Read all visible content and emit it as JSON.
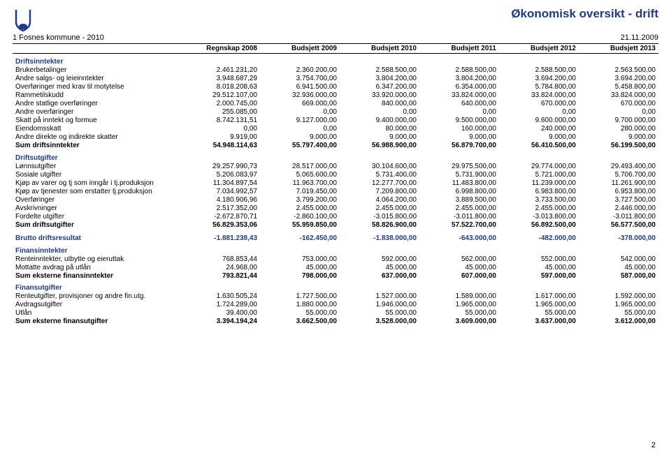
{
  "title": "Økonomisk oversikt - drift",
  "subtitle_left": "1 Fosnes kommune - 2010",
  "subtitle_right": "21.11.2009",
  "page_number": "2",
  "columns": [
    "",
    "Regnskap 2008",
    "Budsjett 2009",
    "Budsjett 2010",
    "Budsjett 2011",
    "Budsjett 2012",
    "Budsjett 2013"
  ],
  "col_widths": [
    "240px",
    "auto",
    "auto",
    "auto",
    "auto",
    "auto",
    "auto"
  ],
  "sections": [
    {
      "heading": "Driftsinntekter",
      "rows": [
        [
          "Brukerbetalinger",
          "2.461.231,20",
          "2.360.200,00",
          "2.588.500,00",
          "2.588.500,00",
          "2.588.500,00",
          "2.563.500,00"
        ],
        [
          "Andre salgs- og leieinntekter",
          "3.948.687,29",
          "3.754.700,00",
          "3.804.200,00",
          "3.804.200,00",
          "3.694.200,00",
          "3.694.200,00"
        ],
        [
          "Overføringer med krav til motytelse",
          "8.018.208,63",
          "6.941.500,00",
          "6.347.200,00",
          "6.354.000,00",
          "5.784.800,00",
          "5.458.800,00"
        ],
        [
          "Rammetilskudd",
          "29.512.107,00",
          "32.936.000,00",
          "33.920.000,00",
          "33.824.000,00",
          "33.824.000,00",
          "33.824.000,00"
        ],
        [
          "Andre statlige overføringer",
          "2.000.745,00",
          "669.000,00",
          "840.000,00",
          "640.000,00",
          "670.000,00",
          "670.000,00"
        ],
        [
          "Andre overføringer",
          "255.085,00",
          "0,00",
          "0,00",
          "0,00",
          "0,00",
          "0,00"
        ],
        [
          "Skatt på inntekt og formue",
          "8.742.131,51",
          "9.127.000,00",
          "9.400.000,00",
          "9.500.000,00",
          "9.600.000,00",
          "9.700.000,00"
        ],
        [
          "Eiendomsskatt",
          "0,00",
          "0,00",
          "80.000,00",
          "160.000,00",
          "240.000,00",
          "280.000,00"
        ],
        [
          "Andre direkte og indirekte skatter",
          "9.919,00",
          "9.000,00",
          "9.000,00",
          "9.000,00",
          "9.000,00",
          "9.000,00"
        ]
      ],
      "sum_row": [
        "Sum driftsinntekter",
        "54.948.114,63",
        "55.797.400,00",
        "56.988.900,00",
        "56.879.700,00",
        "56.410.500,00",
        "56.199.500,00"
      ]
    },
    {
      "heading": "Driftsutgifter",
      "rows": [
        [
          "Lønnsutgifter",
          "29.257.990,73",
          "28.517.000,00",
          "30.104.600,00",
          "29.975.500,00",
          "29.774.000,00",
          "29.493.400,00"
        ],
        [
          "Sosiale utgifter",
          "5.206.083,97",
          "5.065.600,00",
          "5.731.400,00",
          "5.731.900,00",
          "5.721.000,00",
          "5.706.700,00"
        ],
        [
          "Kjøp av varer og tj som inngår i tj.produksjon",
          "11.304.897,54",
          "11.963.700,00",
          "12.277.700,00",
          "11.483.800,00",
          "11.239.000,00",
          "11.261.900,00"
        ],
        [
          "Kjøp av tjenester som erstatter tj.produksjon",
          "7.034.992,57",
          "7.019.450,00",
          "7.209.800,00",
          "6.998.800,00",
          "6.983.800,00",
          "6.953.800,00"
        ],
        [
          "Overføringer",
          "4.180.906,96",
          "3.799.200,00",
          "4.064.200,00",
          "3.889.500,00",
          "3.733.500,00",
          "3.727.500,00"
        ],
        [
          "Avskrivninger",
          "2.517.352,00",
          "2.455.000,00",
          "2.455.000,00",
          "2.455.000,00",
          "2.455.000,00",
          "2.446.000,00"
        ],
        [
          "Fordelte utgifter",
          "-2.672.870,71",
          "-2.860.100,00",
          "-3.015.800,00",
          "-3.011.800,00",
          "-3.013.800,00",
          "-3.011.800,00"
        ]
      ],
      "sum_row": [
        "Sum driftsutgifter",
        "56.829.353,06",
        "55.959.850,00",
        "58.826.900,00",
        "57.522.700,00",
        "56.892.500,00",
        "56.577.500,00"
      ]
    }
  ],
  "brutto_row": [
    "Brutto driftsresultat",
    "-1.881.238,43",
    "-162.450,00",
    "-1.838.000,00",
    "-643.000,00",
    "-482.000,00",
    "-378.000,00"
  ],
  "sections2": [
    {
      "heading": "Finansinntekter",
      "rows": [
        [
          "Renteinntekter, utbytte og eieruttak",
          "768.853,44",
          "753.000,00",
          "592.000,00",
          "562.000,00",
          "552.000,00",
          "542.000,00"
        ],
        [
          "Mottatte avdrag på utlån",
          "24.968,00",
          "45.000,00",
          "45.000,00",
          "45.000,00",
          "45.000,00",
          "45.000,00"
        ]
      ],
      "sum_row": [
        "Sum eksterne finansinntekter",
        "793.821,44",
        "798.000,00",
        "637.000,00",
        "607.000,00",
        "597.000,00",
        "587.000,00"
      ]
    },
    {
      "heading": "Finansutgifter",
      "rows": [
        [
          "Renteutgifter, provisjoner og andre fin.utg.",
          "1.630.505,24",
          "1.727.500,00",
          "1.527.000,00",
          "1.589.000,00",
          "1.617.000,00",
          "1.592.000,00"
        ],
        [
          "Avdragsutgifter",
          "1.724.289,00",
          "1.880.000,00",
          "1.946.000,00",
          "1.965.000,00",
          "1.965.000,00",
          "1.965.000,00"
        ],
        [
          "Utlån",
          "39.400,00",
          "55.000,00",
          "55.000,00",
          "55.000,00",
          "55.000,00",
          "55.000,00"
        ]
      ],
      "sum_row": [
        "Sum eksterne finansutgifter",
        "3.394.194,24",
        "3.662.500,00",
        "3.528.000,00",
        "3.609.000,00",
        "3.637.000,00",
        "3.612.000,00"
      ]
    }
  ],
  "styling": {
    "title_color": "#1e3a8a",
    "body_color": "#000000",
    "background": "#ffffff",
    "title_fontsize": 17,
    "body_fontsize": 10,
    "subheader_fontsize": 11
  }
}
